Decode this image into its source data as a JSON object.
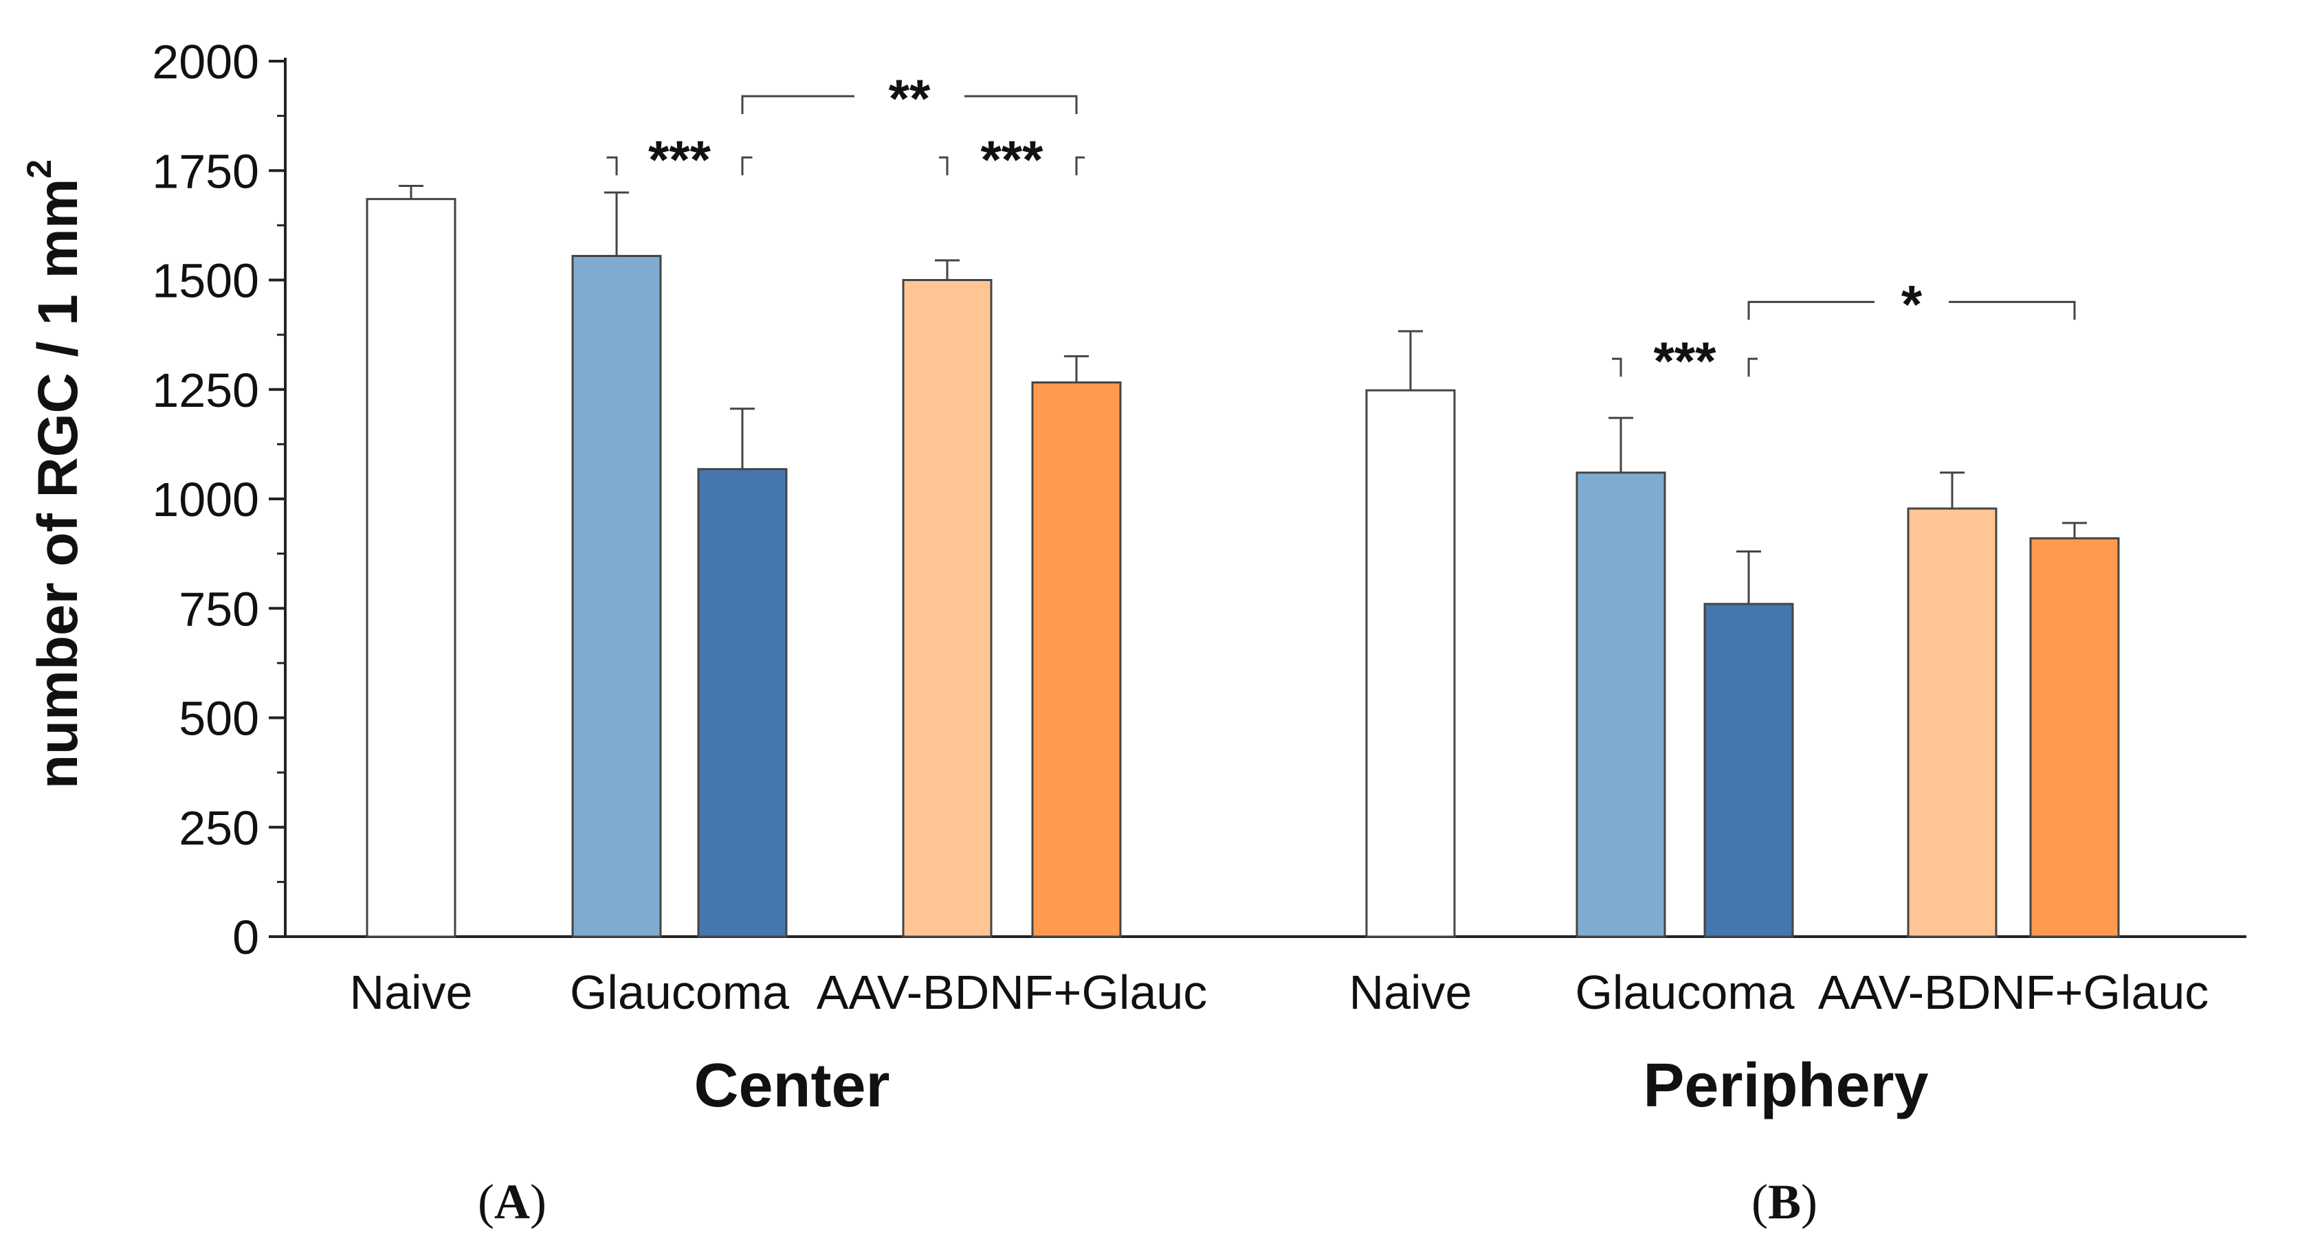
{
  "chart_data": {
    "type": "bar",
    "ylabel": "number of RGC / 1 mm",
    "ylabel_superscript": "2",
    "ylim": [
      0,
      2000
    ],
    "y_ticks": [
      0,
      250,
      500,
      750,
      1000,
      1250,
      1500,
      1750,
      2000
    ],
    "groups": [
      {
        "name": "Center",
        "categories": [
          {
            "label": "Naive",
            "bars": [
              {
                "value": 1685,
                "error": 30,
                "color": "#ffffff"
              }
            ]
          },
          {
            "label": "Glaucoma",
            "bars": [
              {
                "value": 1555,
                "error": 145,
                "color": "#80abd0"
              },
              {
                "value": 1068,
                "error": 138,
                "color": "#4577ae"
              }
            ]
          },
          {
            "label": "AAV-BDNF+Glauc",
            "bars": [
              {
                "value": 1500,
                "error": 45,
                "color": "#ffc594"
              },
              {
                "value": 1266,
                "error": 60,
                "color": "#ff9a4e"
              }
            ]
          }
        ]
      },
      {
        "name": "Periphery",
        "categories": [
          {
            "label": "Naive",
            "bars": [
              {
                "value": 1248,
                "error": 135,
                "color": "#ffffff"
              }
            ]
          },
          {
            "label": "Glaucoma",
            "bars": [
              {
                "value": 1060,
                "error": 125,
                "color": "#80abd0"
              },
              {
                "value": 760,
                "error": 120,
                "color": "#4577ae"
              }
            ]
          },
          {
            "label": "AAV-BDNF+Glauc",
            "bars": [
              {
                "value": 978,
                "error": 82,
                "color": "#ffc594"
              },
              {
                "value": 910,
                "error": 35,
                "color": "#ff9a4e"
              }
            ]
          }
        ]
      }
    ],
    "significance": [
      {
        "group": 0,
        "from": [
          1,
          0
        ],
        "to": [
          1,
          1
        ],
        "level": 1780,
        "label": "***"
      },
      {
        "group": 0,
        "from": [
          2,
          0
        ],
        "to": [
          2,
          1
        ],
        "level": 1780,
        "label": "***"
      },
      {
        "group": 0,
        "from": [
          1,
          1
        ],
        "to": [
          2,
          1
        ],
        "level": 1920,
        "label": "**"
      },
      {
        "group": 1,
        "from": [
          1,
          0
        ],
        "to": [
          1,
          1
        ],
        "level": 1320,
        "label": "***"
      },
      {
        "group": 1,
        "from": [
          1,
          1
        ],
        "to": [
          2,
          1
        ],
        "level": 1450,
        "label": "*"
      }
    ]
  },
  "panels": [
    "A",
    "B"
  ]
}
